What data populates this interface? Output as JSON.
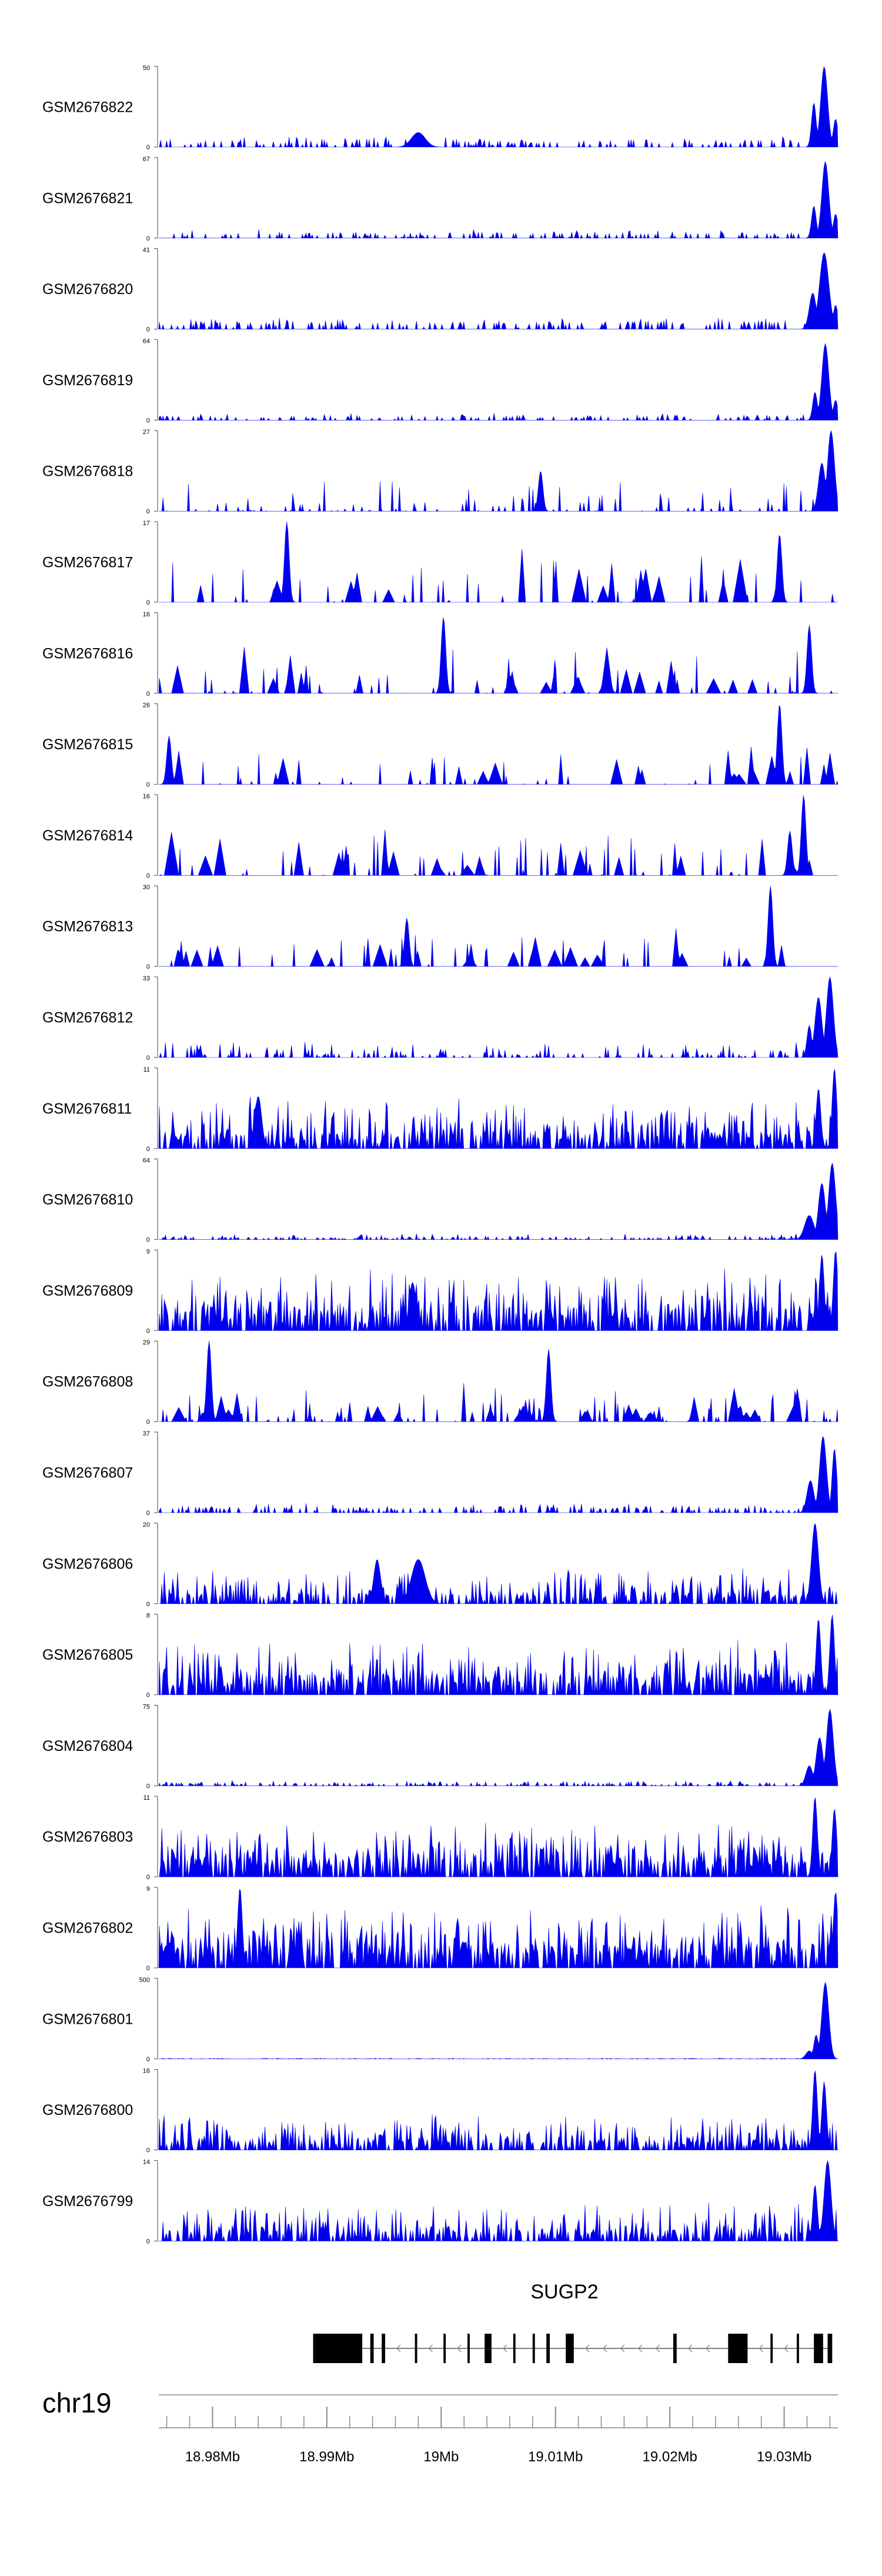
{
  "chart_data": {
    "type": "area",
    "chromosome": "chr19",
    "x_range": [
      18.9753,
      19.0347
    ],
    "x_units": "Mb",
    "axis_ticks": [
      18.98,
      18.99,
      19.0,
      19.01,
      19.02,
      19.03
    ],
    "axis_tick_labels": [
      "18.98Mb",
      "18.99Mb",
      "19Mb",
      "19.01Mb",
      "19.02Mb",
      "19.03Mb"
    ],
    "gene": {
      "name": "SUGP2",
      "strand": "-",
      "start": 18.9888,
      "end": 19.0342,
      "exons": [
        [
          18.9888,
          18.9931
        ],
        [
          18.9938,
          18.9941
        ],
        [
          18.9948,
          18.9951
        ],
        [
          18.9977,
          18.9979
        ],
        [
          19.0002,
          19.0004
        ],
        [
          19.0023,
          19.0025
        ],
        [
          19.0038,
          19.0044
        ],
        [
          19.0063,
          19.0065
        ],
        [
          19.008,
          19.0082
        ],
        [
          19.0092,
          19.0095
        ],
        [
          19.0109,
          19.0116
        ],
        [
          19.0203,
          19.0206
        ],
        [
          19.0251,
          19.0268
        ],
        [
          19.0288,
          19.029
        ],
        [
          19.0311,
          19.0313
        ],
        [
          19.0326,
          19.0334
        ],
        [
          19.0338,
          19.0342
        ]
      ]
    },
    "series": [
      {
        "name": "GSM2676822",
        "ymax": 50,
        "baseline": 0.07,
        "noise": 0.05,
        "density": 0.25,
        "wide": 0,
        "peaks": [
          [
            19.0335,
            1.0,
            0.0003
          ],
          [
            19.0326,
            0.55,
            0.0002
          ],
          [
            19.0345,
            0.35,
            0.0002
          ],
          [
            18.998,
            0.18,
            0.0006
          ]
        ]
      },
      {
        "name": "GSM2676821",
        "ymax": 67,
        "baseline": 0.05,
        "noise": 0.05,
        "density": 0.25,
        "wide": 0,
        "peaks": [
          [
            19.0336,
            0.95,
            0.0003
          ],
          [
            19.0326,
            0.4,
            0.0002
          ],
          [
            19.0345,
            0.3,
            0.0002
          ]
        ]
      },
      {
        "name": "GSM2676820",
        "ymax": 41,
        "baseline": 0.07,
        "noise": 0.06,
        "density": 0.3,
        "wide": 0,
        "peaks": [
          [
            19.0335,
            0.95,
            0.0004
          ],
          [
            19.0325,
            0.45,
            0.0003
          ],
          [
            19.0345,
            0.3,
            0.0002
          ]
        ]
      },
      {
        "name": "GSM2676819",
        "ymax": 64,
        "baseline": 0.04,
        "noise": 0.04,
        "density": 0.25,
        "wide": 0,
        "peaks": [
          [
            19.0336,
            0.95,
            0.0003
          ],
          [
            19.0327,
            0.35,
            0.0002
          ],
          [
            19.0345,
            0.25,
            0.0002
          ]
        ]
      },
      {
        "name": "GSM2676818",
        "ymax": 27,
        "baseline": 0.0,
        "noise": 0.38,
        "density": 0.22,
        "wide": 0,
        "peaks": [
          [
            19.0341,
            1.0,
            0.0003
          ],
          [
            19.0333,
            0.6,
            0.0003
          ],
          [
            19.0087,
            0.5,
            0.0002
          ]
        ]
      },
      {
        "name": "GSM2676817",
        "ymax": 17,
        "baseline": 0.0,
        "noise": 0.6,
        "density": 0.14,
        "wide": 1,
        "peaks": [
          [
            18.9865,
            1.0,
            0.0002
          ],
          [
            19.0296,
            0.85,
            0.0002
          ]
        ]
      },
      {
        "name": "GSM2676816",
        "ymax": 16,
        "baseline": 0.0,
        "noise": 0.55,
        "density": 0.13,
        "wide": 1,
        "peaks": [
          [
            19.0002,
            0.95,
            0.0002
          ],
          [
            19.0322,
            0.85,
            0.0002
          ]
        ]
      },
      {
        "name": "GSM2676815",
        "ymax": 26,
        "baseline": 0.0,
        "noise": 0.5,
        "density": 0.09,
        "wide": 1,
        "peaks": [
          [
            19.0296,
            1.0,
            0.0002
          ],
          [
            18.9762,
            0.6,
            0.0002
          ]
        ]
      },
      {
        "name": "GSM2676814",
        "ymax": 16,
        "baseline": 0.0,
        "noise": 0.5,
        "density": 0.12,
        "wide": 1,
        "peaks": [
          [
            19.0317,
            1.0,
            0.0002
          ],
          [
            19.0305,
            0.55,
            0.0002
          ]
        ]
      },
      {
        "name": "GSM2676813",
        "ymax": 30,
        "baseline": 0.0,
        "noise": 0.42,
        "density": 0.1,
        "wide": 1,
        "peaks": [
          [
            19.0288,
            1.0,
            0.0002
          ],
          [
            18.997,
            0.6,
            0.0002
          ]
        ]
      },
      {
        "name": "GSM2676812",
        "ymax": 33,
        "baseline": 0.03,
        "noise": 0.16,
        "density": 0.3,
        "wide": 0,
        "peaks": [
          [
            19.034,
            1.0,
            0.0003
          ],
          [
            19.033,
            0.75,
            0.0003
          ],
          [
            19.0322,
            0.4,
            0.0002
          ]
        ]
      },
      {
        "name": "GSM2676811",
        "ymax": 11,
        "baseline": 0.15,
        "noise": 0.45,
        "density": 0.65,
        "wide": 0,
        "peaks": [
          [
            19.0344,
            1.0,
            0.0002
          ],
          [
            19.033,
            0.75,
            0.0002
          ],
          [
            18.984,
            0.65,
            0.0003
          ]
        ]
      },
      {
        "name": "GSM2676810",
        "ymax": 64,
        "baseline": 0.02,
        "noise": 0.05,
        "density": 0.3,
        "wide": 0,
        "peaks": [
          [
            19.0342,
            0.95,
            0.0003
          ],
          [
            19.0333,
            0.7,
            0.0003
          ],
          [
            19.0322,
            0.3,
            0.0004
          ]
        ]
      },
      {
        "name": "GSM2676809",
        "ymax": 9,
        "baseline": 0.22,
        "noise": 0.5,
        "density": 0.7,
        "wide": 0,
        "peaks": [
          [
            19.0345,
            1.0,
            0.0002
          ],
          [
            19.0333,
            0.95,
            0.0002
          ],
          [
            18.9975,
            0.6,
            0.0003
          ]
        ]
      },
      {
        "name": "GSM2676808",
        "ymax": 29,
        "baseline": 0.0,
        "noise": 0.45,
        "density": 0.2,
        "wide": 1,
        "peaks": [
          [
            18.9797,
            1.0,
            0.0002
          ],
          [
            19.0094,
            0.9,
            0.0002
          ]
        ]
      },
      {
        "name": "GSM2676807",
        "ymax": 37,
        "baseline": 0.05,
        "noise": 0.06,
        "density": 0.3,
        "wide": 0,
        "peaks": [
          [
            19.0334,
            0.95,
            0.0003
          ],
          [
            19.0344,
            0.8,
            0.0002
          ],
          [
            19.0323,
            0.4,
            0.0003
          ]
        ]
      },
      {
        "name": "GSM2676806",
        "ymax": 20,
        "baseline": 0.1,
        "noise": 0.35,
        "density": 0.55,
        "wide": 0,
        "peaks": [
          [
            19.0327,
            1.0,
            0.0003
          ],
          [
            18.998,
            0.55,
            0.0006
          ],
          [
            18.9944,
            0.55,
            0.0003
          ]
        ]
      },
      {
        "name": "GSM2676805",
        "ymax": 8,
        "baseline": 0.2,
        "noise": 0.45,
        "density": 0.7,
        "wide": 0,
        "peaks": [
          [
            19.0342,
            1.0,
            0.0002
          ],
          [
            19.033,
            0.95,
            0.0002
          ]
        ]
      },
      {
        "name": "GSM2676804",
        "ymax": 75,
        "baseline": 0.03,
        "noise": 0.03,
        "density": 0.3,
        "wide": 0,
        "peaks": [
          [
            19.034,
            0.95,
            0.0003
          ],
          [
            19.0331,
            0.6,
            0.0003
          ],
          [
            19.0322,
            0.25,
            0.0003
          ]
        ]
      },
      {
        "name": "GSM2676803",
        "ymax": 11,
        "baseline": 0.2,
        "noise": 0.45,
        "density": 0.7,
        "wide": 0,
        "peaks": [
          [
            19.0327,
            1.0,
            0.0002
          ],
          [
            19.0344,
            0.85,
            0.0002
          ]
        ]
      },
      {
        "name": "GSM2676802",
        "ymax": 9,
        "baseline": 0.22,
        "noise": 0.5,
        "density": 0.75,
        "wide": 0,
        "peaks": [
          [
            18.9824,
            1.0,
            0.0002
          ],
          [
            19.0345,
            0.95,
            0.0002
          ]
        ]
      },
      {
        "name": "GSM2676801",
        "ymax": 500,
        "baseline": 0.004,
        "noise": 0.006,
        "density": 0.3,
        "wide": 0,
        "peaks": [
          [
            19.0336,
            0.95,
            0.0003
          ],
          [
            19.0328,
            0.3,
            0.0002
          ],
          [
            19.0322,
            0.1,
            0.0003
          ]
        ]
      },
      {
        "name": "GSM2676800",
        "ymax": 16,
        "baseline": 0.1,
        "noise": 0.35,
        "density": 0.6,
        "wide": 0,
        "peaks": [
          [
            19.0327,
            1.0,
            0.0002
          ],
          [
            19.0335,
            0.85,
            0.0002
          ]
        ]
      },
      {
        "name": "GSM2676799",
        "ymax": 14,
        "baseline": 0.12,
        "noise": 0.35,
        "density": 0.6,
        "wide": 0,
        "peaks": [
          [
            19.0338,
            1.0,
            0.0003
          ],
          [
            19.0327,
            0.7,
            0.0002
          ]
        ]
      }
    ]
  },
  "colors": {
    "signal": "#0000ee",
    "gene": "#000000",
    "axis": "#888888",
    "track_axis": "#444444"
  }
}
